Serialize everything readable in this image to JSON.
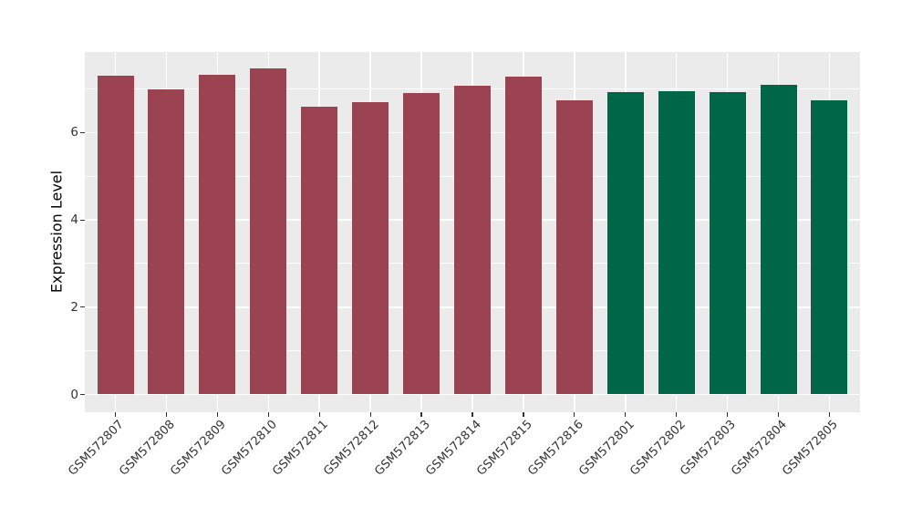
{
  "figure": {
    "background_color": "#ffffff",
    "panel_background_color": "#ebebeb",
    "gridline_color": "#ffffff",
    "tick_color": "#333333",
    "axis_text_color": "#333333",
    "axis_title_color": "#000000",
    "group_colors": {
      "red_group": "#9b4350",
      "green_group": "#006648"
    }
  },
  "chart_data": {
    "type": "bar",
    "title": "",
    "xlabel": "",
    "ylabel": "Expression Level",
    "categories": [
      "GSM572807",
      "GSM572808",
      "GSM572809",
      "GSM572810",
      "GSM572811",
      "GSM572812",
      "GSM572813",
      "GSM572814",
      "GSM572815",
      "GSM572816",
      "GSM572801",
      "GSM572802",
      "GSM572803",
      "GSM572804",
      "GSM572805"
    ],
    "values": [
      7.31,
      6.99,
      7.32,
      7.48,
      6.59,
      6.71,
      6.9,
      7.07,
      7.29,
      6.75,
      6.94,
      6.96,
      6.92,
      7.09,
      6.75
    ],
    "bar_colors": [
      "#9b4350",
      "#9b4350",
      "#9b4350",
      "#9b4350",
      "#9b4350",
      "#9b4350",
      "#9b4350",
      "#9b4350",
      "#9b4350",
      "#9b4350",
      "#006648",
      "#006648",
      "#006648",
      "#006648",
      "#006648"
    ],
    "ylim": [
      0,
      7.85
    ],
    "yticks": [
      0,
      2,
      4,
      6
    ],
    "yticks_minor": [
      1,
      3,
      5,
      7
    ],
    "ytick_labels": [
      "0",
      "2",
      "4",
      "6"
    ],
    "grid": "on",
    "legend": "none",
    "x_label_rotation_deg": 45
  }
}
